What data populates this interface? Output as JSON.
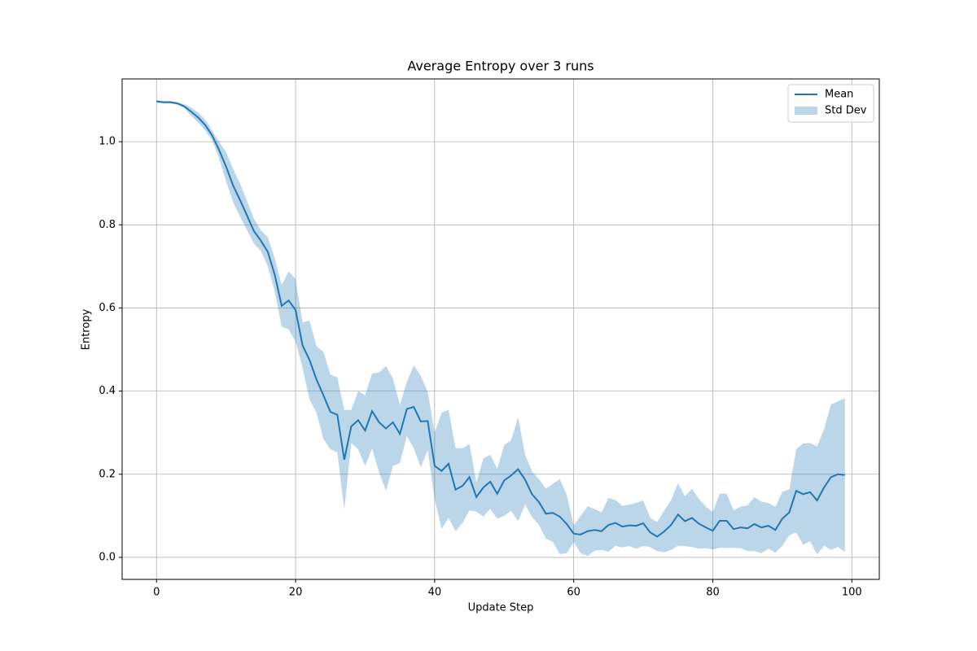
{
  "chart_data": {
    "type": "line",
    "title": "Average Entropy over 3 runs",
    "x_label": "Update Step",
    "y_label": "Entropy",
    "x": [
      0,
      1,
      2,
      3,
      4,
      5,
      6,
      7,
      8,
      9,
      10,
      11,
      12,
      13,
      14,
      15,
      16,
      17,
      18,
      19,
      20,
      21,
      22,
      23,
      24,
      25,
      26,
      27,
      28,
      29,
      30,
      31,
      32,
      33,
      34,
      35,
      36,
      37,
      38,
      39,
      40,
      41,
      42,
      43,
      44,
      45,
      46,
      47,
      48,
      49,
      50,
      51,
      52,
      53,
      54,
      55,
      56,
      57,
      58,
      59,
      60,
      61,
      62,
      63,
      64,
      65,
      66,
      67,
      68,
      69,
      70,
      71,
      72,
      73,
      74,
      75,
      76,
      77,
      78,
      79,
      80,
      81,
      82,
      83,
      84,
      85,
      86,
      87,
      88,
      89,
      90,
      91,
      92,
      93,
      94,
      95,
      96,
      97,
      98,
      99
    ],
    "series": [
      {
        "name": "Mean",
        "color": "#1f77b4",
        "values": [
          1.097,
          1.095,
          1.095,
          1.092,
          1.085,
          1.072,
          1.058,
          1.04,
          1.015,
          0.98,
          0.94,
          0.895,
          0.86,
          0.823,
          0.785,
          0.762,
          0.735,
          0.68,
          0.605,
          0.618,
          0.595,
          0.51,
          0.475,
          0.428,
          0.39,
          0.35,
          0.343,
          0.235,
          0.315,
          0.33,
          0.305,
          0.352,
          0.325,
          0.31,
          0.325,
          0.297,
          0.357,
          0.362,
          0.327,
          0.328,
          0.22,
          0.208,
          0.225,
          0.163,
          0.172,
          0.193,
          0.145,
          0.168,
          0.182,
          0.153,
          0.185,
          0.197,
          0.212,
          0.187,
          0.152,
          0.133,
          0.105,
          0.107,
          0.098,
          0.08,
          0.057,
          0.055,
          0.063,
          0.066,
          0.063,
          0.078,
          0.083,
          0.074,
          0.077,
          0.076,
          0.082,
          0.06,
          0.05,
          0.062,
          0.078,
          0.103,
          0.087,
          0.095,
          0.081,
          0.072,
          0.064,
          0.088,
          0.088,
          0.068,
          0.072,
          0.07,
          0.08,
          0.072,
          0.076,
          0.066,
          0.093,
          0.108,
          0.16,
          0.152,
          0.157,
          0.137,
          0.168,
          0.193,
          0.2,
          0.198
        ]
      },
      {
        "name": "Std Dev",
        "color": "#1f77b4",
        "values": [
          0.003,
          0.003,
          0.003,
          0.003,
          0.005,
          0.01,
          0.012,
          0.013,
          0.012,
          0.02,
          0.035,
          0.04,
          0.04,
          0.035,
          0.03,
          0.025,
          0.035,
          0.04,
          0.05,
          0.07,
          0.075,
          0.055,
          0.095,
          0.08,
          0.105,
          0.09,
          0.09,
          0.12,
          0.04,
          0.07,
          0.085,
          0.09,
          0.12,
          0.15,
          0.105,
          0.07,
          0.065,
          0.1,
          0.11,
          0.07,
          0.08,
          0.14,
          0.13,
          0.1,
          0.09,
          0.08,
          0.035,
          0.07,
          0.065,
          0.06,
          0.085,
          0.085,
          0.125,
          0.06,
          0.055,
          0.055,
          0.06,
          0.07,
          0.09,
          0.07,
          0.02,
          0.045,
          0.06,
          0.05,
          0.045,
          0.065,
          0.055,
          0.05,
          0.05,
          0.055,
          0.055,
          0.035,
          0.035,
          0.05,
          0.06,
          0.075,
          0.06,
          0.07,
          0.06,
          0.05,
          0.045,
          0.065,
          0.065,
          0.045,
          0.05,
          0.055,
          0.065,
          0.062,
          0.055,
          0.055,
          0.065,
          0.055,
          0.1,
          0.122,
          0.118,
          0.13,
          0.14,
          0.175,
          0.175,
          0.185
        ]
      }
    ],
    "xlim": [
      -4.95,
      103.95
    ],
    "ylim": [
      -0.053,
      1.151
    ],
    "xticks": [
      0,
      20,
      40,
      60,
      80,
      100
    ],
    "yticks": [
      {
        "value": 0,
        "label": "0.0"
      },
      0.2,
      0.4,
      0.6,
      0.8,
      {
        "value": 1,
        "label": "1.0"
      }
    ],
    "grid": true,
    "legend": "upper-right"
  }
}
